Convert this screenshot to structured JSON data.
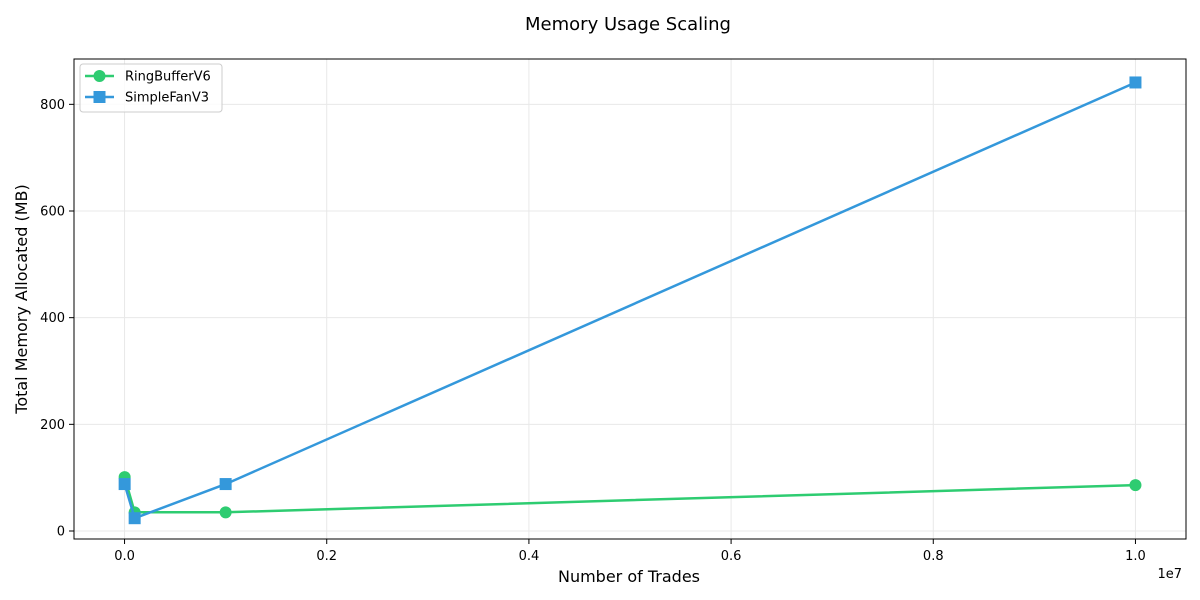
{
  "chart_data": {
    "type": "line",
    "title": "Memory Usage Scaling",
    "xlabel": "Number of Trades",
    "ylabel": "Total Memory Allocated (MB)",
    "x_offset_label": "1e7",
    "xlim": [
      -500000,
      10500000
    ],
    "ylim": [
      -15,
      885
    ],
    "x_ticks": [
      0,
      2000000,
      4000000,
      6000000,
      8000000,
      10000000
    ],
    "x_tick_labels": [
      "0.0",
      "0.2",
      "0.4",
      "0.6",
      "0.8",
      "1.0"
    ],
    "y_ticks": [
      0,
      200,
      400,
      600,
      800
    ],
    "y_tick_labels": [
      "0",
      "200",
      "400",
      "600",
      "800"
    ],
    "grid": true,
    "legend_position": "top-left",
    "x": [
      1000,
      100000,
      1000000,
      10000000
    ],
    "series": [
      {
        "name": "RingBufferV6",
        "color": "#2ecc71",
        "marker": "circle",
        "values": [
          101,
          35,
          35,
          86
        ]
      },
      {
        "name": "SimpleFanV3",
        "color": "#3498db",
        "marker": "square",
        "values": [
          88,
          24,
          88,
          841
        ]
      }
    ]
  }
}
